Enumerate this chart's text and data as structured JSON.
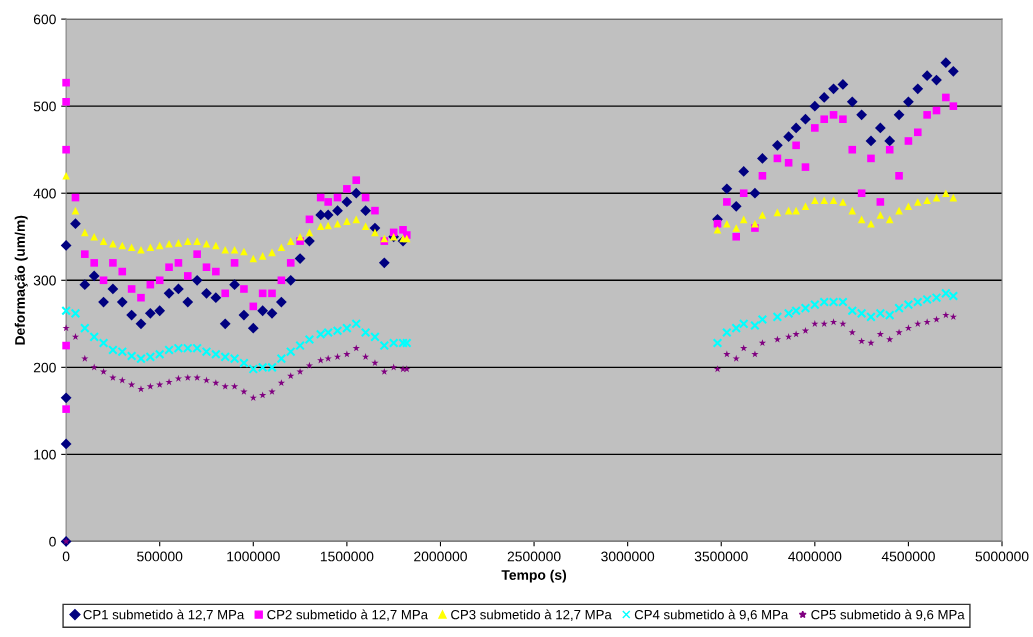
{
  "chart_data": {
    "type": "scatter",
    "xlabel": "Tempo (s)",
    "ylabel": "Deformação (um/m)",
    "xlim": [
      0,
      5000000
    ],
    "xticks": [
      0,
      500000,
      1000000,
      1500000,
      2000000,
      2500000,
      3000000,
      3500000,
      4000000,
      4500000,
      5000000
    ],
    "ylim": [
      0,
      600
    ],
    "yticks": [
      0,
      100,
      200,
      300,
      400,
      500,
      600
    ],
    "grid": "y",
    "legend": "bottom",
    "series": [
      {
        "name": "CP1 submetido à 12,7 MPa",
        "color": "#000080",
        "marker": "diamond",
        "x": [
          0,
          0,
          0,
          0,
          50000,
          100000,
          150000,
          200000,
          250000,
          300000,
          350000,
          400000,
          450000,
          500000,
          550000,
          600000,
          650000,
          700000,
          750000,
          800000,
          850000,
          900000,
          950000,
          1000000,
          1050000,
          1100000,
          1150000,
          1200000,
          1250000,
          1300000,
          1360000,
          1400000,
          1450000,
          1500000,
          1550000,
          1600000,
          1650000,
          1700000,
          1750000,
          1800000,
          1820000,
          3480000,
          3530000,
          3580000,
          3620000,
          3680000,
          3720000,
          3800000,
          3860000,
          3900000,
          3950000,
          4000000,
          4050000,
          4100000,
          4150000,
          4200000,
          4250000,
          4300000,
          4350000,
          4400000,
          4450000,
          4500000,
          4550000,
          4600000,
          4650000,
          4700000,
          4740000
        ],
        "values": [
          0,
          112,
          165,
          340,
          365,
          295,
          305,
          275,
          290,
          275,
          260,
          250,
          262,
          265,
          285,
          290,
          275,
          300,
          285,
          280,
          250,
          295,
          260,
          245,
          265,
          262,
          275,
          300,
          325,
          345,
          375,
          375,
          380,
          390,
          400,
          380,
          360,
          320,
          350,
          345,
          null,
          370,
          405,
          385,
          425,
          400,
          440,
          455,
          465,
          475,
          485,
          500,
          510,
          520,
          525,
          505,
          490,
          460,
          475,
          460,
          490,
          505,
          520,
          535,
          530,
          550,
          540
        ]
      },
      {
        "name": "CP2 submetido à 12,7 MPa",
        "color": "#ff00ff",
        "marker": "square",
        "x": [
          0,
          0,
          0,
          0,
          0,
          50000,
          100000,
          150000,
          200000,
          250000,
          300000,
          350000,
          400000,
          450000,
          500000,
          550000,
          600000,
          650000,
          700000,
          750000,
          800000,
          850000,
          900000,
          950000,
          1000000,
          1050000,
          1100000,
          1150000,
          1200000,
          1250000,
          1300000,
          1360000,
          1400000,
          1450000,
          1500000,
          1550000,
          1600000,
          1650000,
          1700000,
          1750000,
          1800000,
          1820000,
          3480000,
          3530000,
          3580000,
          3620000,
          3680000,
          3720000,
          3800000,
          3860000,
          3900000,
          3950000,
          4000000,
          4050000,
          4100000,
          4150000,
          4200000,
          4250000,
          4300000,
          4350000,
          4400000,
          4450000,
          4500000,
          4550000,
          4600000,
          4650000,
          4700000,
          4740000
        ],
        "values": [
          152,
          225,
          527,
          505,
          450,
          395,
          330,
          320,
          300,
          320,
          310,
          290,
          280,
          295,
          300,
          315,
          320,
          305,
          330,
          315,
          310,
          285,
          320,
          290,
          270,
          285,
          285,
          300,
          320,
          345,
          370,
          395,
          390,
          395,
          405,
          415,
          395,
          380,
          345,
          355,
          358,
          352,
          365,
          390,
          350,
          400,
          360,
          420,
          440,
          435,
          455,
          430,
          475,
          485,
          490,
          485,
          450,
          400,
          440,
          390,
          450,
          420,
          460,
          470,
          490,
          495,
          510,
          500
        ]
      },
      {
        "name": "CP3 submetido à 12,7 MPa",
        "color": "#ffff00",
        "marker": "triangle",
        "x": [
          0,
          50000,
          100000,
          150000,
          200000,
          250000,
          300000,
          350000,
          400000,
          450000,
          500000,
          550000,
          600000,
          650000,
          700000,
          750000,
          800000,
          850000,
          900000,
          950000,
          1000000,
          1050000,
          1100000,
          1150000,
          1200000,
          1250000,
          1300000,
          1360000,
          1400000,
          1450000,
          1500000,
          1550000,
          1600000,
          1650000,
          1700000,
          1750000,
          1800000,
          1820000,
          3480000,
          3530000,
          3580000,
          3620000,
          3680000,
          3720000,
          3800000,
          3860000,
          3900000,
          3950000,
          4000000,
          4050000,
          4100000,
          4150000,
          4200000,
          4250000,
          4300000,
          4350000,
          4400000,
          4450000,
          4500000,
          4550000,
          4600000,
          4650000,
          4700000,
          4740000
        ],
        "values": [
          420,
          380,
          355,
          350,
          345,
          342,
          340,
          338,
          335,
          338,
          340,
          342,
          343,
          345,
          345,
          342,
          340,
          335,
          335,
          333,
          325,
          328,
          332,
          338,
          345,
          350,
          355,
          362,
          363,
          365,
          368,
          370,
          362,
          355,
          348,
          350,
          348,
          348,
          358,
          365,
          360,
          370,
          365,
          375,
          378,
          380,
          380,
          385,
          392,
          392,
          392,
          390,
          380,
          370,
          365,
          375,
          370,
          380,
          385,
          390,
          392,
          395,
          400,
          395
        ]
      },
      {
        "name": "CP4 submetido à 9,6 MPa",
        "color": "#00ffff",
        "marker": "cross",
        "x": [
          0,
          50000,
          100000,
          150000,
          200000,
          250000,
          300000,
          350000,
          400000,
          450000,
          500000,
          550000,
          600000,
          650000,
          700000,
          750000,
          800000,
          850000,
          900000,
          950000,
          1000000,
          1050000,
          1100000,
          1150000,
          1200000,
          1250000,
          1300000,
          1360000,
          1400000,
          1450000,
          1500000,
          1550000,
          1600000,
          1650000,
          1700000,
          1750000,
          1800000,
          1820000,
          3480000,
          3530000,
          3580000,
          3620000,
          3680000,
          3720000,
          3800000,
          3860000,
          3900000,
          3950000,
          4000000,
          4050000,
          4100000,
          4150000,
          4200000,
          4250000,
          4300000,
          4350000,
          4400000,
          4450000,
          4500000,
          4550000,
          4600000,
          4650000,
          4700000,
          4740000
        ],
        "values": [
          265,
          262,
          245,
          235,
          228,
          220,
          218,
          213,
          210,
          212,
          215,
          220,
          222,
          222,
          222,
          218,
          215,
          212,
          210,
          205,
          198,
          200,
          200,
          210,
          218,
          225,
          232,
          238,
          240,
          242,
          245,
          250,
          240,
          235,
          225,
          228,
          228,
          228,
          228,
          240,
          245,
          250,
          248,
          255,
          258,
          262,
          265,
          268,
          272,
          275,
          275,
          275,
          265,
          262,
          258,
          262,
          260,
          268,
          272,
          275,
          278,
          280,
          285,
          282
        ]
      },
      {
        "name": "CP5 submetido à 9,6 MPa",
        "color": "#800080",
        "marker": "star",
        "x": [
          0,
          0,
          50000,
          100000,
          150000,
          200000,
          250000,
          300000,
          350000,
          400000,
          450000,
          500000,
          550000,
          600000,
          650000,
          700000,
          750000,
          800000,
          850000,
          900000,
          950000,
          1000000,
          1050000,
          1100000,
          1150000,
          1200000,
          1250000,
          1300000,
          1360000,
          1400000,
          1450000,
          1500000,
          1550000,
          1600000,
          1650000,
          1700000,
          1750000,
          1800000,
          1820000,
          3480000,
          3530000,
          3580000,
          3620000,
          3680000,
          3720000,
          3800000,
          3860000,
          3900000,
          3950000,
          4000000,
          4050000,
          4100000,
          4150000,
          4200000,
          4250000,
          4300000,
          4350000,
          4400000,
          4450000,
          4500000,
          4550000,
          4600000,
          4650000,
          4700000,
          4740000
        ],
        "values": [
          0,
          245,
          235,
          210,
          200,
          195,
          188,
          185,
          180,
          175,
          178,
          180,
          183,
          187,
          188,
          188,
          185,
          182,
          178,
          178,
          172,
          165,
          168,
          172,
          182,
          190,
          195,
          202,
          208,
          210,
          212,
          215,
          222,
          212,
          205,
          195,
          200,
          198,
          198,
          198,
          215,
          210,
          222,
          215,
          228,
          232,
          235,
          238,
          242,
          250,
          250,
          252,
          250,
          240,
          230,
          228,
          238,
          232,
          240,
          245,
          250,
          252,
          255,
          260,
          258
        ]
      }
    ]
  }
}
